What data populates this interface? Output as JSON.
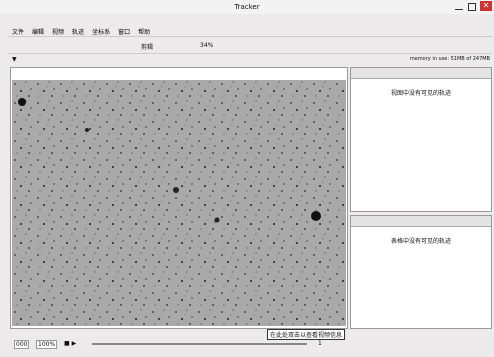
{
  "window": {
    "title": "Tracker"
  },
  "menu": {
    "items": [
      "文件",
      "编辑",
      "视频",
      "轨迹",
      "坐标系",
      "窗口",
      "帮助"
    ]
  },
  "toolbar": {
    "clip": "剪辑",
    "zoom": "34%",
    "memory": "memory in use: 51MB of 247MB"
  },
  "panels": {
    "top": {
      "message": "视图中没有可见的轨迹"
    },
    "bottom": {
      "message": "表格中没有可见的轨迹"
    }
  },
  "player": {
    "frame": "000",
    "rate": "100%",
    "step": "1"
  },
  "video": {
    "caption": "在此处双击以查看视频信息"
  }
}
